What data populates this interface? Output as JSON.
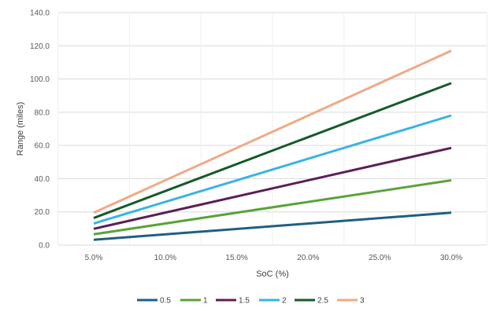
{
  "chart_data": {
    "type": "line",
    "title": "",
    "xlabel": "SoC (%)",
    "ylabel": "Range (miles)",
    "categories": [
      "5.0%",
      "10.0%",
      "15.0%",
      "20.0%",
      "25.0%",
      "30.0%"
    ],
    "x": [
      5,
      30
    ],
    "ylim": [
      0,
      140
    ],
    "yticks": [
      "0.0",
      "20.0",
      "40.0",
      "60.0",
      "80.0",
      "100.0",
      "120.0",
      "140.0"
    ],
    "grid": true,
    "legend_position": "bottom",
    "series": [
      {
        "name": "0.5",
        "color": "#1f5f82",
        "values": [
          3.2,
          19.5
        ]
      },
      {
        "name": "1",
        "color": "#5aa33a",
        "values": [
          6.5,
          39.0
        ]
      },
      {
        "name": "1.5",
        "color": "#5b1f55",
        "values": [
          9.8,
          58.5
        ]
      },
      {
        "name": "2",
        "color": "#3ab4e0",
        "values": [
          13.0,
          78.0
        ]
      },
      {
        "name": "2.5",
        "color": "#165a2a",
        "values": [
          16.3,
          97.5
        ]
      },
      {
        "name": "3",
        "color": "#eeaa88",
        "values": [
          19.5,
          117.0
        ]
      }
    ]
  }
}
